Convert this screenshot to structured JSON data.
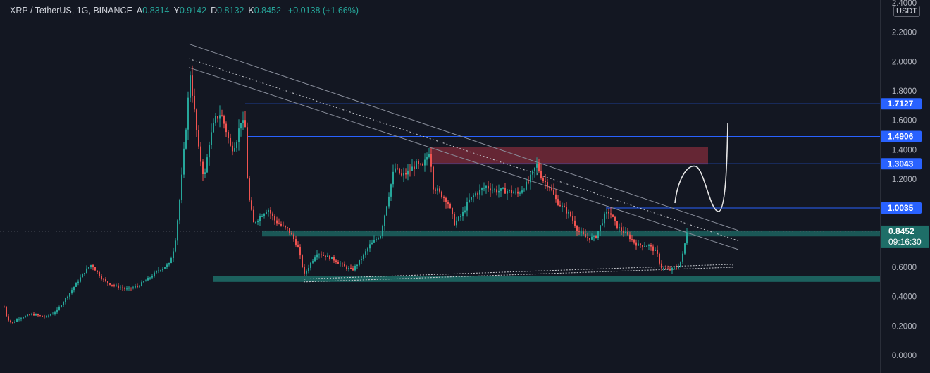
{
  "header": {
    "symbol": "XRP / TetherUS, 1G, BINANCE",
    "open_label": "A",
    "open": "0.8314",
    "high_label": "Y",
    "high": "0.9142",
    "low_label": "D",
    "low": "0.8132",
    "close_label": "K",
    "close": "0.8452",
    "change": "+0.0138 (+1.66%)"
  },
  "currency_badge": "USDT",
  "colors": {
    "background": "#131722",
    "up": "#26a69a",
    "down": "#ef5350",
    "level_line": "#2962ff",
    "support_zone": "#1e6e68",
    "resistance_zone": "#7a2a3a",
    "trendline": "#8a8f9c"
  },
  "chart_data": {
    "type": "candlestick",
    "ylim": [
      0.0,
      2.4
    ],
    "y_ticks": [
      "0.0000",
      "0.2000",
      "0.4000",
      "0.6000",
      "0.8000",
      "1.0000",
      "1.2000",
      "1.4000",
      "1.6000",
      "1.8000",
      "2.0000",
      "2.2000",
      "2.4000"
    ],
    "price_levels": [
      {
        "label": "1.7127",
        "value": 1.7127
      },
      {
        "label": "1.4906",
        "value": 1.4906
      },
      {
        "label": "1.3043",
        "value": 1.3043
      },
      {
        "label": "1.0035",
        "value": 1.0035
      }
    ],
    "last_price": {
      "label": "0.8452",
      "value": 0.8452,
      "countdown": "09:16:30"
    },
    "price_path": [
      [
        0,
        0.45
      ],
      [
        10,
        0.25
      ],
      [
        18,
        0.22
      ],
      [
        25,
        0.25
      ],
      [
        45,
        0.28
      ],
      [
        65,
        0.26
      ],
      [
        80,
        0.3
      ],
      [
        95,
        0.4
      ],
      [
        110,
        0.5
      ],
      [
        120,
        0.57
      ],
      [
        130,
        0.62
      ],
      [
        140,
        0.55
      ],
      [
        150,
        0.5
      ],
      [
        165,
        0.47
      ],
      [
        180,
        0.45
      ],
      [
        195,
        0.47
      ],
      [
        210,
        0.52
      ],
      [
        225,
        0.58
      ],
      [
        240,
        0.62
      ],
      [
        248,
        0.75
      ],
      [
        256,
        1.1
      ],
      [
        263,
        1.5
      ],
      [
        270,
        1.92
      ],
      [
        275,
        1.7
      ],
      [
        282,
        1.4
      ],
      [
        290,
        1.2
      ],
      [
        297,
        1.45
      ],
      [
        305,
        1.6
      ],
      [
        313,
        1.65
      ],
      [
        320,
        1.55
      ],
      [
        328,
        1.4
      ],
      [
        335,
        1.45
      ],
      [
        342,
        1.6
      ],
      [
        348,
        1.55
      ],
      [
        352,
        1.1
      ],
      [
        360,
        0.9
      ],
      [
        370,
        0.95
      ],
      [
        380,
        1.0
      ],
      [
        390,
        0.92
      ],
      [
        400,
        0.88
      ],
      [
        410,
        0.85
      ],
      [
        422,
        0.75
      ],
      [
        432,
        0.55
      ],
      [
        440,
        0.62
      ],
      [
        450,
        0.7
      ],
      [
        460,
        0.68
      ],
      [
        475,
        0.65
      ],
      [
        490,
        0.6
      ],
      [
        500,
        0.58
      ],
      [
        512,
        0.65
      ],
      [
        525,
        0.75
      ],
      [
        540,
        0.82
      ],
      [
        550,
        1.05
      ],
      [
        560,
        1.28
      ],
      [
        570,
        1.22
      ],
      [
        580,
        1.25
      ],
      [
        590,
        1.3
      ],
      [
        600,
        1.28
      ],
      [
        610,
        1.4
      ],
      [
        615,
        1.15
      ],
      [
        625,
        1.1
      ],
      [
        635,
        1.05
      ],
      [
        645,
        0.9
      ],
      [
        655,
        0.95
      ],
      [
        665,
        1.05
      ],
      [
        675,
        1.1
      ],
      [
        690,
        1.15
      ],
      [
        705,
        1.12
      ],
      [
        720,
        1.12
      ],
      [
        735,
        1.1
      ],
      [
        750,
        1.18
      ],
      [
        762,
        1.3
      ],
      [
        770,
        1.2
      ],
      [
        780,
        1.15
      ],
      [
        790,
        1.05
      ],
      [
        800,
        1.0
      ],
      [
        810,
        0.95
      ],
      [
        820,
        0.85
      ],
      [
        832,
        0.8
      ],
      [
        845,
        0.8
      ],
      [
        858,
        0.95
      ],
      [
        865,
        0.98
      ],
      [
        875,
        0.88
      ],
      [
        890,
        0.82
      ],
      [
        905,
        0.75
      ],
      [
        920,
        0.75
      ],
      [
        932,
        0.7
      ],
      [
        938,
        0.6
      ],
      [
        950,
        0.58
      ],
      [
        962,
        0.6
      ],
      [
        968,
        0.66
      ],
      [
        972,
        0.76
      ],
      [
        975,
        0.845
      ]
    ]
  }
}
